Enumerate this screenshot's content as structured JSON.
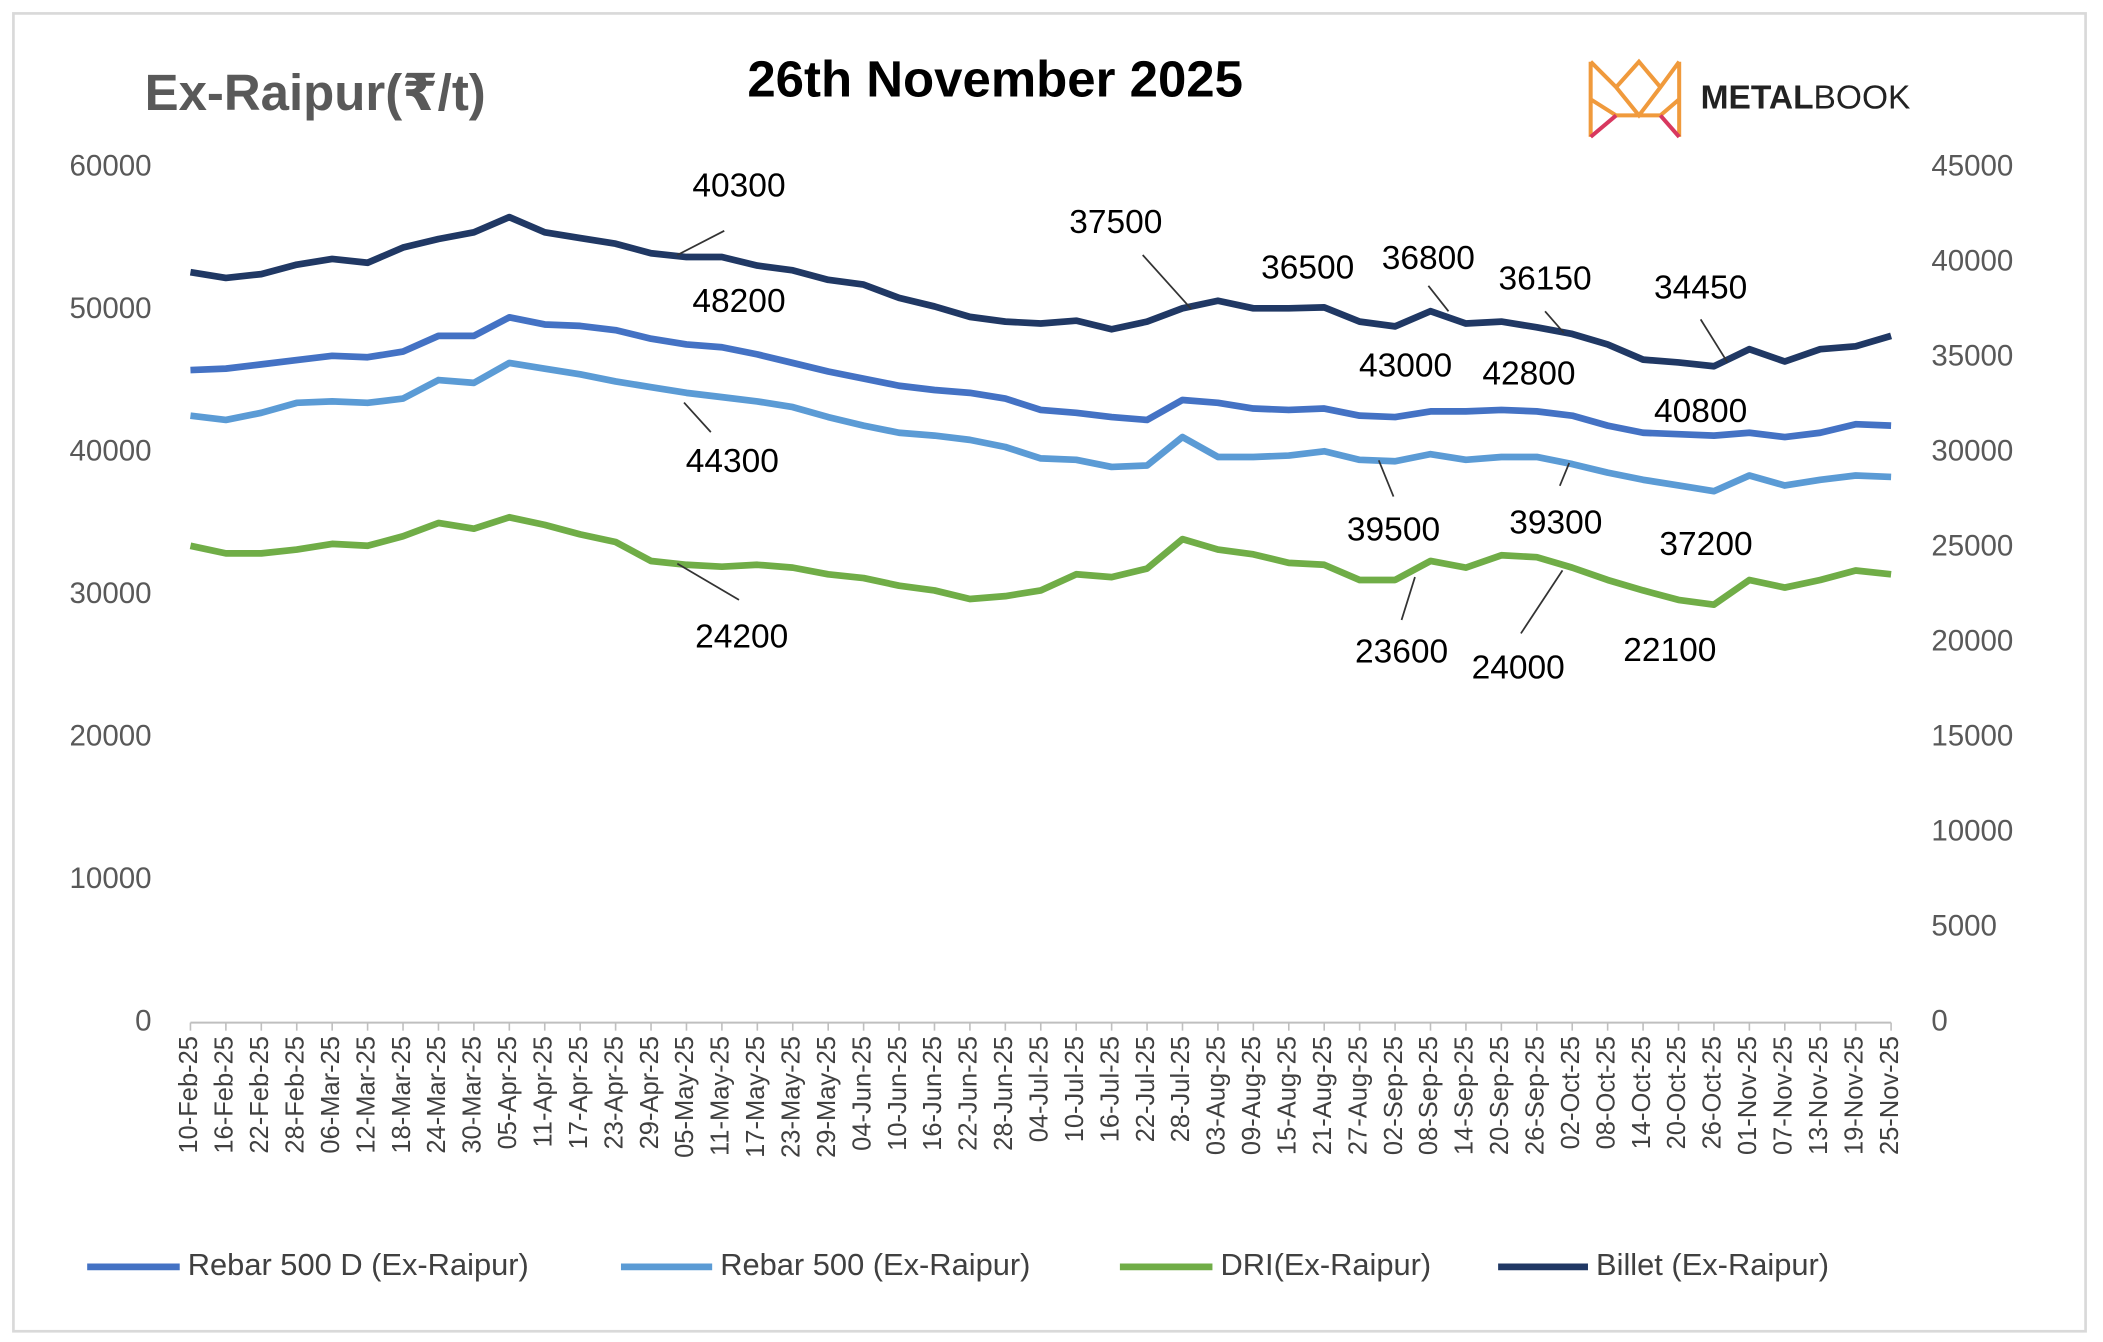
{
  "chart_data": {
    "type": "line",
    "title": "26th November 2025",
    "y_axis_label": "Ex-Raipur(₹/t)",
    "logo": [
      "METAL",
      "BOOK"
    ],
    "categories": [
      "10-Feb-25",
      "16-Feb-25",
      "22-Feb-25",
      "28-Feb-25",
      "06-Mar-25",
      "12-Mar-25",
      "18-Mar-25",
      "24-Mar-25",
      "30-Mar-25",
      "05-Apr-25",
      "11-Apr-25",
      "17-Apr-25",
      "23-Apr-25",
      "29-Apr-25",
      "05-May-25",
      "11-May-25",
      "17-May-25",
      "23-May-25",
      "29-May-25",
      "04-Jun-25",
      "10-Jun-25",
      "16-Jun-25",
      "22-Jun-25",
      "28-Jun-25",
      "04-Jul-25",
      "10-Jul-25",
      "16-Jul-25",
      "22-Jul-25",
      "28-Jul-25",
      "03-Aug-25",
      "09-Aug-25",
      "15-Aug-25",
      "21-Aug-25",
      "27-Aug-25",
      "02-Sep-25",
      "08-Sep-25",
      "14-Sep-25",
      "20-Sep-25",
      "26-Sep-25",
      "02-Oct-25",
      "08-Oct-25",
      "14-Oct-25",
      "20-Oct-25",
      "26-Oct-25",
      "01-Nov-25",
      "07-Nov-25",
      "13-Nov-25",
      "19-Nov-25",
      "25-Nov-25"
    ],
    "series": [
      {
        "name": "Rebar 500 D (Ex-Raipur)",
        "color": "#4472c4",
        "values": [
          45800,
          45900,
          46200,
          46500,
          46800,
          46700,
          47100,
          48200,
          48200,
          49500,
          49000,
          48900,
          48600,
          48000,
          47600,
          47400,
          46900,
          46300,
          45700,
          45200,
          44700,
          44400,
          44200,
          43800,
          43000,
          42800,
          42500,
          42300,
          43700,
          43500,
          43100,
          43000,
          43100,
          42600,
          42500,
          42900,
          42900,
          43000,
          42900,
          42600,
          41900,
          41400,
          41300,
          41200,
          41400,
          41100,
          41400,
          42000,
          41900
        ]
      },
      {
        "name": "Rebar 500 (Ex-Raipur)",
        "color": "#5b9bd5",
        "values": [
          42600,
          42300,
          42800,
          43500,
          43600,
          43500,
          43800,
          45100,
          44900,
          46300,
          45900,
          45500,
          45000,
          44600,
          44200,
          43900,
          43600,
          43200,
          42500,
          41900,
          41400,
          41200,
          40900,
          40400,
          39600,
          39500,
          39000,
          39100,
          41100,
          39700,
          39700,
          39800,
          40100,
          39500,
          39400,
          39900,
          39500,
          39700,
          39700,
          39200,
          38600,
          38100,
          37700,
          37300,
          38400,
          37700,
          38100,
          38400,
          38300
        ]
      },
      {
        "name": "DRI(Ex-Raipur)",
        "color": "#70ad47",
        "axis": "y2",
        "values": [
          25100,
          24700,
          24700,
          24900,
          25200,
          25100,
          25600,
          26300,
          26000,
          26600,
          26200,
          25700,
          25300,
          24300,
          24100,
          24000,
          24100,
          23950,
          23600,
          23400,
          23000,
          22750,
          22300,
          22450,
          22750,
          23600,
          23450,
          23900,
          25450,
          24900,
          24650,
          24200,
          24100,
          23300,
          23300,
          24300,
          23950,
          24600,
          24500,
          23950,
          23300,
          22750,
          22250,
          22000,
          23300,
          22900,
          23300,
          23800,
          23600
        ]
      },
      {
        "name": "Billet (Ex-Raipur)",
        "color": "#203864",
        "axis": "y2",
        "values": [
          39500,
          39200,
          39400,
          39900,
          40200,
          40000,
          40800,
          41250,
          41600,
          42400,
          41600,
          41300,
          41000,
          40500,
          40300,
          40300,
          39850,
          39600,
          39100,
          38850,
          38150,
          37700,
          37150,
          36900,
          36800,
          36950,
          36500,
          36900,
          37600,
          38000,
          37600,
          37600,
          37650,
          36900,
          36650,
          37450,
          36800,
          36900,
          36600,
          36250,
          35700,
          34900,
          34750,
          34550,
          35450,
          34800,
          35450,
          35600,
          36150
        ]
      }
    ],
    "annotations": [
      40300,
      48200,
      44300,
      24200,
      37500,
      36500,
      36800,
      36150,
      34450,
      43000,
      42800,
      40800,
      39500,
      39300,
      23600,
      24000,
      37200,
      22100
    ],
    "ylim": [
      0,
      60000
    ],
    "yticks": [
      0,
      10000,
      20000,
      30000,
      40000,
      50000,
      60000
    ],
    "y2lim": [
      0,
      45000
    ],
    "y2ticks": [
      0,
      5000,
      10000,
      15000,
      20000,
      25000,
      30000,
      35000,
      40000,
      45000
    ],
    "legend": "bottom"
  }
}
